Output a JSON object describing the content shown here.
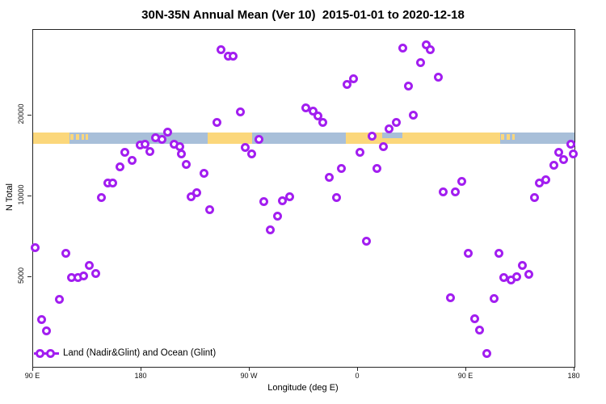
{
  "title": "30N-35N Annual Mean (Ver 10)  2015-01-01 to 2020-12-18",
  "axes": {
    "x": {
      "label": "Longitude (deg E)",
      "ticks": [
        {
          "value": 90,
          "label": "90 E"
        },
        {
          "value": 180,
          "label": "180"
        },
        {
          "value": 270,
          "label": "90 W"
        },
        {
          "value": 360,
          "label": "0"
        },
        {
          "value": 450,
          "label": "90 E"
        },
        {
          "value": 540,
          "label": "180"
        }
      ]
    },
    "y": {
      "label": "N Total",
      "ticks": [
        {
          "value": 5000,
          "label": "5000"
        },
        {
          "value": 10000,
          "label": "10000"
        },
        {
          "value": 20000,
          "label": "20000"
        }
      ]
    }
  },
  "legend": {
    "label": "Land (Nadir&Glint) and Ocean (Glint)"
  },
  "colors": {
    "point": "#a21ef0",
    "land": "#fbd77b",
    "ocean": "#a8bfd9",
    "axis": "#262626"
  },
  "chart_data": {
    "type": "scatter",
    "title": "30N-35N Annual Mean (Ver 10)  2015-01-01 to 2020-12-18",
    "xlabel": "Longitude (deg E)",
    "ylabel": "N Total",
    "xlim": [
      90,
      540
    ],
    "ylim": [
      2320,
      41700
    ],
    "ylog": true,
    "grid": false,
    "marker": "open-circle",
    "points": [
      [
        246,
        35100
      ],
      [
        252,
        33200
      ],
      [
        256,
        33400
      ],
      [
        262,
        20700
      ],
      [
        243,
        18800
      ],
      [
        317,
        21300
      ],
      [
        202,
        17300
      ],
      [
        192,
        16500
      ],
      [
        197,
        16300
      ],
      [
        179,
        15500
      ],
      [
        183,
        15600
      ],
      [
        187,
        14700
      ],
      [
        207,
        15700
      ],
      [
        212,
        15300
      ],
      [
        213,
        14400
      ],
      [
        166,
        14600
      ],
      [
        172,
        13600
      ],
      [
        162,
        12900
      ],
      [
        152,
        11250
      ],
      [
        156,
        11200
      ],
      [
        147,
        9900
      ],
      [
        217,
        13200
      ],
      [
        232,
        12200
      ],
      [
        221,
        10000
      ],
      [
        226,
        10350
      ],
      [
        272,
        14400
      ],
      [
        266,
        15200
      ],
      [
        278,
        16300
      ],
      [
        282,
        9600
      ],
      [
        297,
        9650
      ],
      [
        303,
        10000
      ],
      [
        397,
        35800
      ],
      [
        417,
        36600
      ],
      [
        420,
        35100
      ],
      [
        412,
        31600
      ],
      [
        427,
        27900
      ],
      [
        351,
        26200
      ],
      [
        356,
        27500
      ],
      [
        402,
        25800
      ],
      [
        323,
        20800
      ],
      [
        327,
        19900
      ],
      [
        331,
        18800
      ],
      [
        406,
        20100
      ],
      [
        392,
        18800
      ],
      [
        386,
        17800
      ],
      [
        372,
        16800
      ],
      [
        381,
        15300
      ],
      [
        362,
        14600
      ],
      [
        376,
        12700
      ],
      [
        346,
        12700
      ],
      [
        336,
        11800
      ],
      [
        342,
        9900
      ],
      [
        446,
        11400
      ],
      [
        431,
        10400
      ],
      [
        441,
        10400
      ],
      [
        523,
        13100
      ],
      [
        527,
        14600
      ],
      [
        531,
        13700
      ],
      [
        537,
        15700
      ],
      [
        511,
        11250
      ],
      [
        516,
        11500
      ],
      [
        507,
        9900
      ],
      [
        539,
        14400
      ],
      [
        237,
        8950
      ],
      [
        293,
        8470
      ],
      [
        287,
        7520
      ],
      [
        92,
        6430
      ],
      [
        117,
        6130
      ],
      [
        137,
        5530
      ],
      [
        122,
        4990
      ],
      [
        127,
        4990
      ],
      [
        132,
        5060
      ],
      [
        142,
        5170
      ],
      [
        112,
        4130
      ],
      [
        97,
        3490
      ],
      [
        101,
        3160
      ],
      [
        367,
        6830
      ],
      [
        452,
        6130
      ],
      [
        477,
        6130
      ],
      [
        497,
        5520
      ],
      [
        481,
        4990
      ],
      [
        487,
        4890
      ],
      [
        492,
        5020
      ],
      [
        502,
        5130
      ],
      [
        437,
        4190
      ],
      [
        473,
        4170
      ],
      [
        457,
        3510
      ],
      [
        461,
        3180
      ],
      [
        467,
        2600
      ]
    ],
    "map_strip": {
      "ocean_extent": [
        90,
        540
      ],
      "land_segments": [
        [
          90,
          120
        ],
        [
          235,
          272
        ],
        [
          350,
          478
        ]
      ],
      "island_segments": [
        [
          121,
          123.5
        ],
        [
          125.5,
          128
        ],
        [
          130,
          132
        ],
        [
          133.5,
          136
        ],
        [
          479,
          481.5
        ],
        [
          483.5,
          486
        ],
        [
          488,
          490
        ]
      ],
      "sea_inlet_segments": [
        [
          380,
          397
        ]
      ]
    }
  }
}
